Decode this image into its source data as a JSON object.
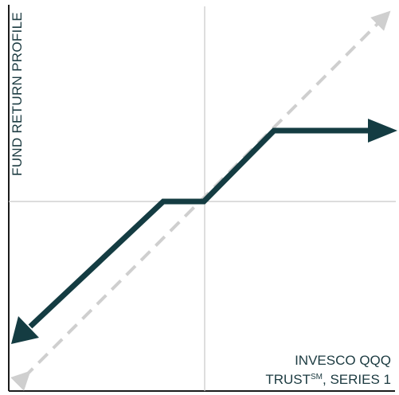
{
  "y_axis_title": "FUND RETURN PROFILE",
  "legend": {
    "line1": "INVESCO QQQ",
    "line2_prefix": "TRUST",
    "line2_super": "SM",
    "line2_suffix": ", SERIES 1"
  },
  "colors": {
    "fund_line": "#143c42",
    "reference_line": "#cfcfcf",
    "axes": "#1b1b1b",
    "crosshair": "#c8c8c8"
  }
}
